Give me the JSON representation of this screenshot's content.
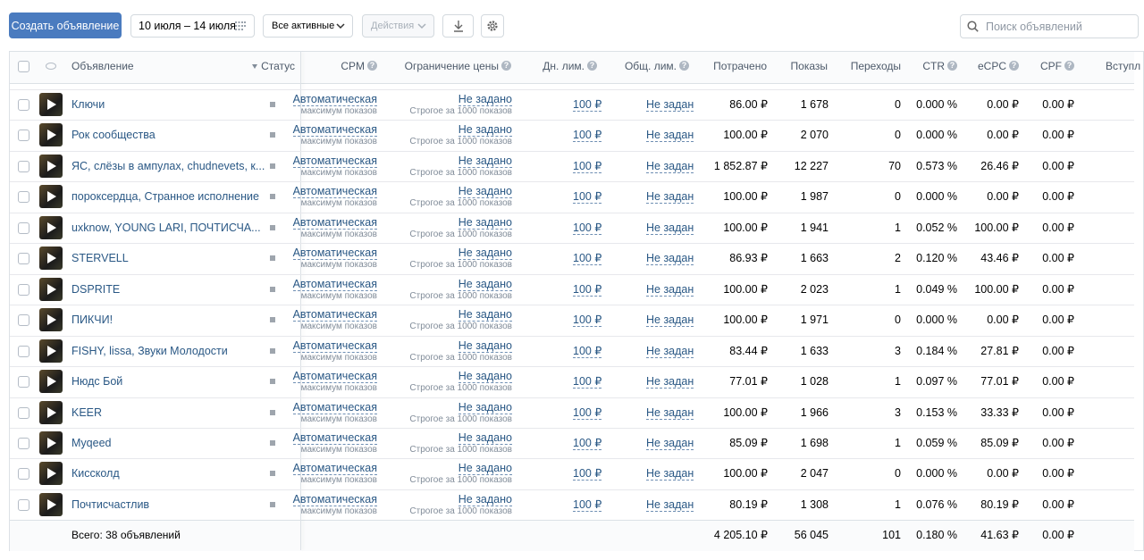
{
  "toolbar": {
    "create_button": "Создать объявление",
    "date_range": "10 июля – 14 июля",
    "filter": "Все активные",
    "actions": "Действия",
    "search_placeholder": "Поиск объявлений"
  },
  "table": {
    "columns": [
      "Объявление",
      "Статус",
      "CPM",
      "Ограничение цены",
      "Дн. лим.",
      "Общ. лим.",
      "Потрачено",
      "Показы",
      "Переходы",
      "CTR",
      "eCPC",
      "CPF",
      "Вступл"
    ],
    "shared": {
      "cpm": "Автоматическая",
      "cpm_sub": "максимум показов",
      "price_limit": "Не задано",
      "price_sub": "Строгое за 1000 показов",
      "day_limit": "100 ₽",
      "total_limit": "Не задан"
    },
    "rows": [
      [
        "Ключи",
        "86.00 ₽",
        "1 678",
        "0",
        "0.000 %",
        "0.00 ₽",
        "0.00 ₽"
      ],
      [
        "Рок сообщества",
        "100.00 ₽",
        "2 070",
        "0",
        "0.000 %",
        "0.00 ₽",
        "0.00 ₽"
      ],
      [
        "ЯС, слёзы в ампулах, chudnevets, к...",
        "1 852.87 ₽",
        "12 227",
        "70",
        "0.573 %",
        "26.46 ₽",
        "0.00 ₽"
      ],
      [
        "пороксердца, Странное исполнение",
        "100.00 ₽",
        "1 987",
        "0",
        "0.000 %",
        "0.00 ₽",
        "0.00 ₽"
      ],
      [
        "uxknow, YOUNG LARI, ПОЧТИСЧА...",
        "100.00 ₽",
        "1 941",
        "1",
        "0.052 %",
        "100.00 ₽",
        "0.00 ₽"
      ],
      [
        "STERVELL",
        "86.93 ₽",
        "1 663",
        "2",
        "0.120 %",
        "43.46 ₽",
        "0.00 ₽"
      ],
      [
        "DSPRITE",
        "100.00 ₽",
        "2 023",
        "1",
        "0.049 %",
        "100.00 ₽",
        "0.00 ₽"
      ],
      [
        "ПИКЧИ!",
        "100.00 ₽",
        "1 971",
        "0",
        "0.000 %",
        "0.00 ₽",
        "0.00 ₽"
      ],
      [
        "FISHY, lissa, Звуки Молодости",
        "83.44 ₽",
        "1 633",
        "3",
        "0.184 %",
        "27.81 ₽",
        "0.00 ₽"
      ],
      [
        "Нюдс Бой",
        "77.01 ₽",
        "1 028",
        "1",
        "0.097 %",
        "77.01 ₽",
        "0.00 ₽"
      ],
      [
        "KEER",
        "100.00 ₽",
        "1 966",
        "3",
        "0.153 %",
        "33.33 ₽",
        "0.00 ₽"
      ],
      [
        "Myqeed",
        "85.09 ₽",
        "1 698",
        "1",
        "0.059 %",
        "85.09 ₽",
        "0.00 ₽"
      ],
      [
        "Киссколд",
        "100.00 ₽",
        "2 047",
        "0",
        "0.000 %",
        "0.00 ₽",
        "0.00 ₽"
      ],
      [
        "Почтисчастлив",
        "80.19 ₽",
        "1 308",
        "1",
        "0.076 %",
        "80.19 ₽",
        "0.00 ₽"
      ]
    ],
    "footer": [
      "Всего: 38 объявлений",
      "4 205.10 ₽",
      "56 045",
      "101",
      "0.180 %",
      "41.63 ₽",
      "0.00 ₽"
    ]
  }
}
